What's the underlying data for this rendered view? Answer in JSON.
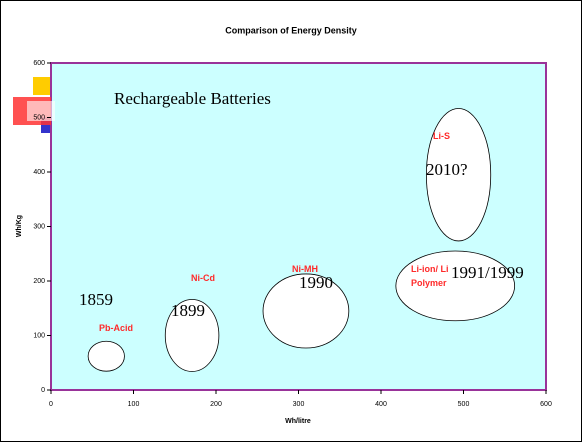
{
  "chart_data": {
    "type": "bubble",
    "title": "Comparison of Energy Density",
    "annotation": "Rechargeable Batteries",
    "xlabel": "Wh/litre",
    "ylabel": "Wh/Kg",
    "xlim": [
      0,
      600
    ],
    "ylim": [
      0,
      600
    ],
    "xticks": [
      0,
      100,
      200,
      300,
      400,
      500,
      600
    ],
    "yticks": [
      0,
      100,
      200,
      300,
      400,
      500,
      600
    ],
    "plot_color": "#ccffff",
    "border_color": "#993399",
    "bubble_color": "#ffffff",
    "label_color": "#ff2a2a",
    "labels": [
      "Pb-Acid",
      "Ni-Cd",
      "Ni-MH",
      "Li-ion/ Li\nPolymer",
      "Li-S"
    ],
    "years": [
      "1859",
      "1899",
      "1990",
      "1991/1999",
      "2010?"
    ],
    "x": [
      67,
      171,
      309,
      490,
      494
    ],
    "y": [
      62,
      100,
      145,
      191,
      395
    ],
    "width": [
      44,
      65,
      104,
      144,
      78
    ],
    "height": [
      55,
      132,
      136,
      128,
      243
    ]
  }
}
